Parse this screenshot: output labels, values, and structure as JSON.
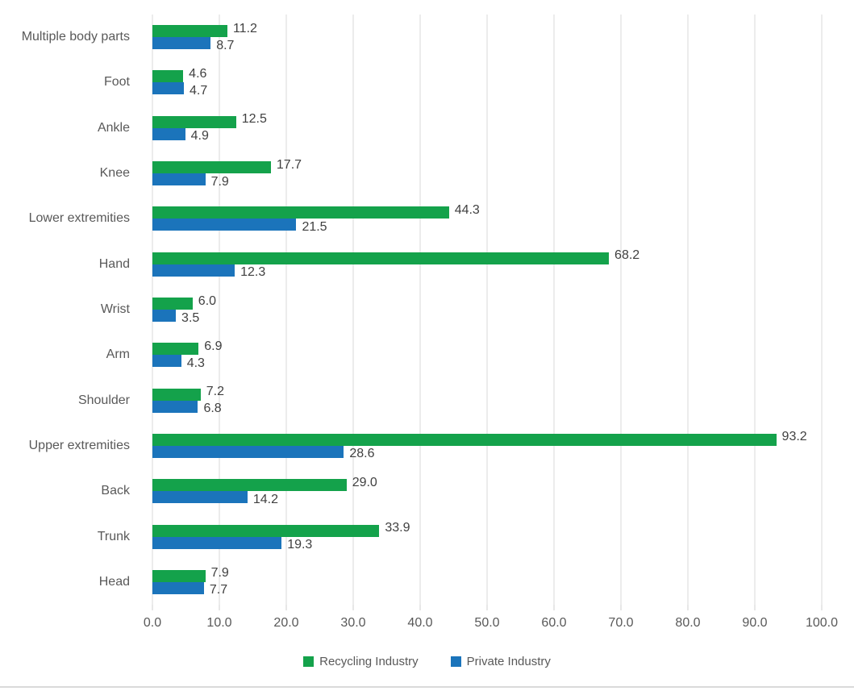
{
  "chart_data": {
    "type": "bar",
    "orientation": "horizontal",
    "title": "",
    "xlabel": "",
    "ylabel": "",
    "xlim": [
      0,
      100
    ],
    "grid": true,
    "legend_position": "bottom",
    "categories": [
      "Multiple body parts",
      "Foot",
      "Ankle",
      "Knee",
      "Lower extremities",
      "Hand",
      "Wrist",
      "Arm",
      "Shoulder",
      "Upper extremities",
      "Back",
      "Trunk",
      "Head"
    ],
    "series": [
      {
        "name": "Recycling Industry",
        "color": "#14A24B",
        "values": [
          11.2,
          4.6,
          12.5,
          17.7,
          44.3,
          68.2,
          6.0,
          6.9,
          7.2,
          93.2,
          29.0,
          33.9,
          7.9
        ],
        "labels": [
          "11.2",
          "4.6",
          "12.5",
          "17.7",
          "44.3",
          "68.2",
          "6.0",
          "6.9",
          "7.2",
          "93.2",
          "29.0",
          "33.9",
          "7.9"
        ]
      },
      {
        "name": "Private Industry",
        "color": "#1B74BB",
        "values": [
          8.7,
          4.7,
          4.9,
          7.9,
          21.5,
          12.3,
          3.5,
          4.3,
          6.8,
          28.6,
          14.2,
          19.3,
          7.7
        ],
        "labels": [
          "8.7",
          "4.7",
          "4.9",
          "7.9",
          "21.5",
          "12.3",
          "3.5",
          "4.3",
          "6.8",
          "28.6",
          "14.2",
          "19.3",
          "7.7"
        ]
      }
    ]
  },
  "axis": {
    "tick_labels": [
      "0.0",
      "10.0",
      "20.0",
      "30.0",
      "40.0",
      "50.0",
      "60.0",
      "70.0",
      "80.0",
      "90.0",
      "100.0"
    ],
    "tick_values": [
      0,
      10,
      20,
      30,
      40,
      50,
      60,
      70,
      80,
      90,
      100
    ]
  },
  "colors": {
    "gridline": "#D9D9D9",
    "tick_stub": "#CFCFCF",
    "axis_text": "#595959",
    "category_text": "#595959",
    "data_label_text": "#404040",
    "legend_text": "#595959",
    "bottom_rule": "#DADADA",
    "background": "#FFFFFF"
  }
}
